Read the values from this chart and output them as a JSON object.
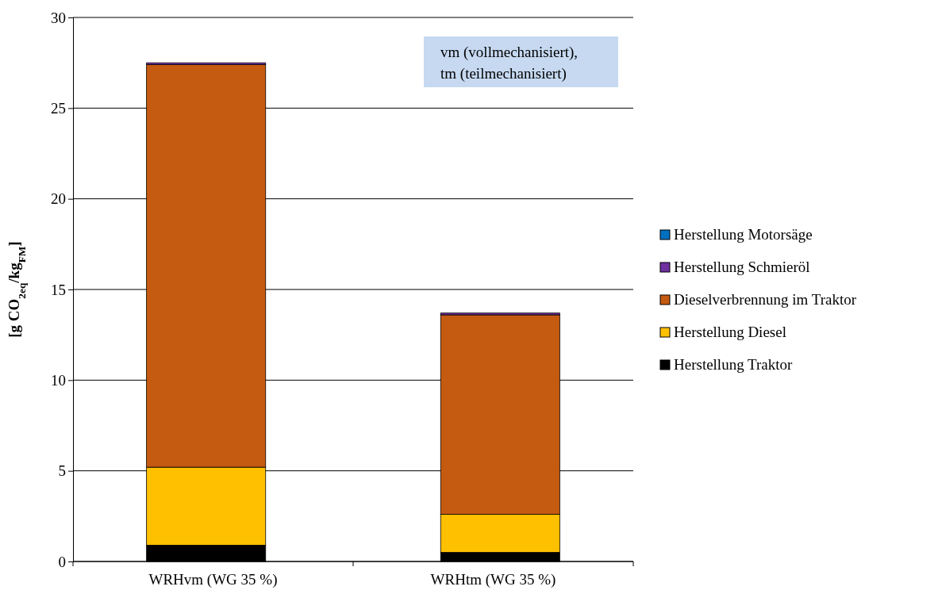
{
  "chart_data": {
    "type": "bar",
    "stacked": true,
    "ylabel": "[g CO$_{2eq}$/kg$_{FM}$]",
    "categories": [
      "WRHvm (WG 35 %)",
      "WRHtm (WG 35 %)"
    ],
    "series": [
      {
        "name": "Herstellung Traktor",
        "color": "#000000",
        "values": [
          0.9,
          0.5
        ]
      },
      {
        "name": "Herstellung Diesel",
        "color": "#ffc000",
        "values": [
          4.3,
          2.1
        ]
      },
      {
        "name": "Dieselverbrennung im Traktor",
        "color": "#c55a11",
        "values": [
          22.2,
          11.0
        ]
      },
      {
        "name": "Herstellung Schmieröl",
        "color": "#7030a0",
        "values": [
          0.1,
          0.1
        ]
      },
      {
        "name": "Herstellung Motorsäge",
        "color": "#0070c0",
        "values": [
          0,
          0
        ]
      }
    ],
    "ylim": [
      0,
      30
    ],
    "yticks": [
      0,
      5,
      10,
      15,
      20,
      25,
      30
    ],
    "grid": "y",
    "legend": "right",
    "annotations": [
      "vm (vollmechanisiert),\ntm (teilmechanisiert)"
    ]
  }
}
